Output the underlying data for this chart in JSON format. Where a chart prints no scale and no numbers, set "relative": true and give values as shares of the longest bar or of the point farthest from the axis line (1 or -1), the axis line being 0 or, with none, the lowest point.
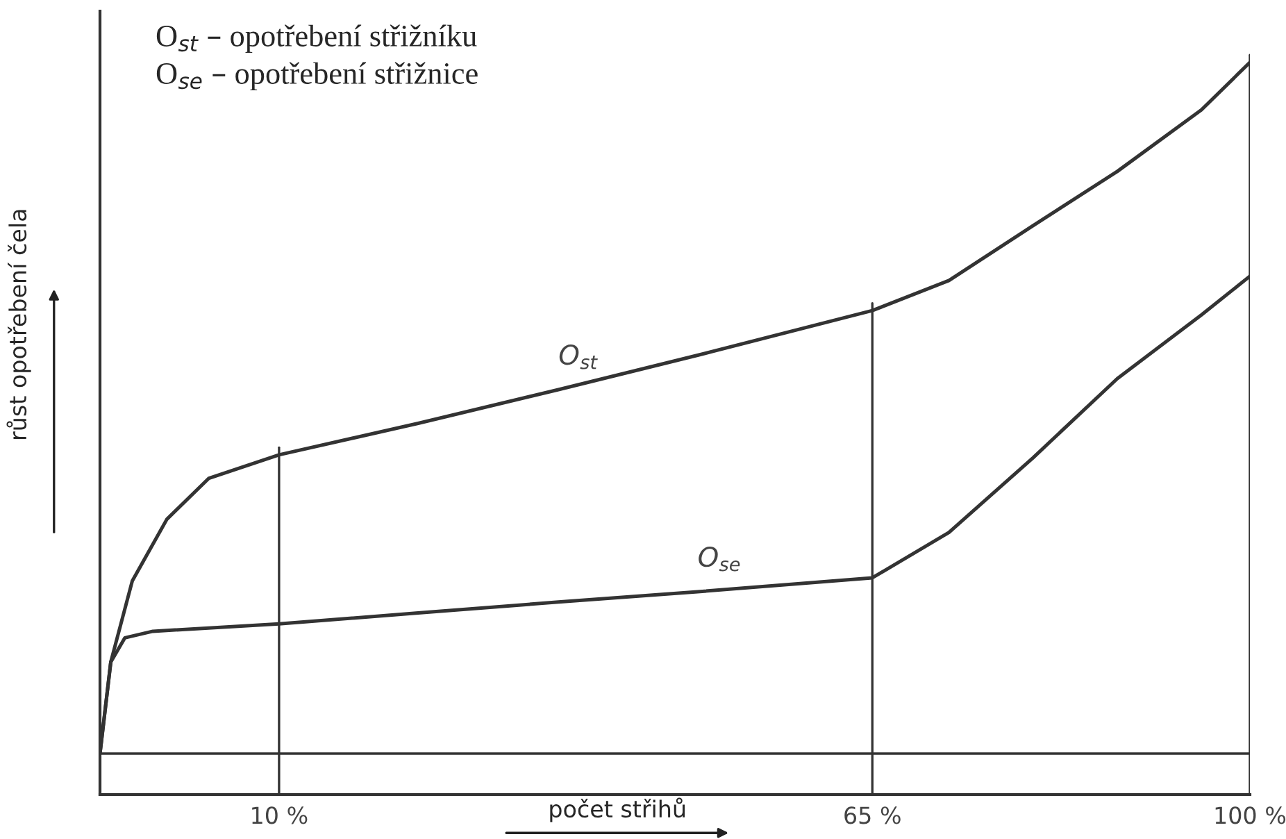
{
  "chart_data": {
    "type": "line",
    "relative": true,
    "xlabel": "počet střihů",
    "ylabel": "růst opotřebení čela",
    "annotations": [
      "O$_{st}$ – opotřebení střižníku",
      "O$_{se}$ – opotřebení střižnice"
    ],
    "xlim": [
      -6.6,
      100
    ],
    "xticks": [
      {
        "value": 10,
        "label": "10 %"
      },
      {
        "value": 65,
        "label": "65 %"
      },
      {
        "value": 100,
        "label": "100 %"
      }
    ],
    "series": [
      {
        "name": "O$_{st}$",
        "color": "#333333",
        "x": [
          -6.6,
          -5.6,
          -3.6,
          -0.4,
          3.5,
          10,
          22.9,
          35.9,
          48.8,
          65,
          72.1,
          79.9,
          87.7,
          95.5,
          100
        ],
        "values": [
          0.056,
          0.181,
          0.292,
          0.376,
          0.432,
          0.464,
          0.507,
          0.553,
          0.6,
          0.661,
          0.702,
          0.777,
          0.851,
          0.935,
          1.0
        ]
      },
      {
        "name": "O$_{se}$",
        "color": "#333333",
        "x": [
          -6.6,
          -5.6,
          -4.3,
          -1.7,
          10,
          22.9,
          35.9,
          48.8,
          65,
          72.1,
          79.9,
          87.7,
          95.5,
          100
        ],
        "values": [
          0.056,
          0.181,
          0.214,
          0.223,
          0.233,
          0.248,
          0.263,
          0.277,
          0.296,
          0.358,
          0.46,
          0.568,
          0.655,
          0.708
        ]
      }
    ],
    "ref_lines": [
      {
        "axis": "x",
        "value": 10
      },
      {
        "axis": "x",
        "value": 65
      },
      {
        "axis": "x",
        "value": 100
      },
      {
        "axis": "y",
        "value": 0.056
      }
    ],
    "grid": false,
    "legend": false,
    "marker": "none",
    "line_style": "solid"
  }
}
